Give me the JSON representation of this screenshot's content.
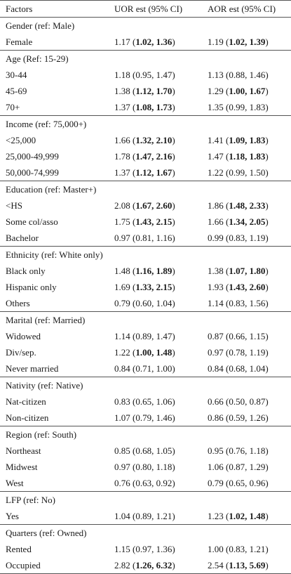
{
  "header": {
    "factors": "Factors",
    "uor": "UOR est (95% CI)",
    "aor": "AOR est (95% CI)"
  },
  "groups": [
    {
      "title": "Gender (ref: Male)",
      "rows": [
        {
          "label": "Female",
          "uor": {
            "est": "1.17",
            "ci": "1.02, 1.36",
            "bold": true
          },
          "aor": {
            "est": "1.19",
            "ci": "1.02, 1.39",
            "bold": true
          }
        }
      ]
    },
    {
      "title": "Age (Ref: 15-29)",
      "rows": [
        {
          "label": "30-44",
          "uor": {
            "est": "1.18",
            "ci": "0.95, 1.47",
            "bold": false
          },
          "aor": {
            "est": "1.13",
            "ci": "0.88, 1.46",
            "bold": false
          }
        },
        {
          "label": "45-69",
          "uor": {
            "est": "1.38",
            "ci": "1.12, 1.70",
            "bold": true
          },
          "aor": {
            "est": "1.29",
            "ci": "1.00, 1.67",
            "bold": true
          }
        },
        {
          "label": "70+",
          "uor": {
            "est": "1.37",
            "ci": "1.08, 1.73",
            "bold": true
          },
          "aor": {
            "est": "1.35",
            "ci": "0.99, 1.83",
            "bold": false
          }
        }
      ]
    },
    {
      "title": "Income (ref: 75,000+)",
      "rows": [
        {
          "label": "<25,000",
          "uor": {
            "est": "1.66",
            "ci": "1.32, 2.10",
            "bold": true
          },
          "aor": {
            "est": "1.41",
            "ci": "1.09, 1.83",
            "bold": true
          }
        },
        {
          "label": "25,000-49,999",
          "uor": {
            "est": "1.78",
            "ci": "1.47, 2.16",
            "bold": true
          },
          "aor": {
            "est": "1.47",
            "ci": "1.18, 1.83",
            "bold": true
          }
        },
        {
          "label": "50,000-74,999",
          "uor": {
            "est": "1.37",
            "ci": "1.12, 1.67",
            "bold": true
          },
          "aor": {
            "est": "1.22",
            "ci": "0.99, 1.50",
            "bold": false
          }
        }
      ]
    },
    {
      "title": "Education (ref: Master+)",
      "rows": [
        {
          "label": "<HS",
          "uor": {
            "est": "2.08",
            "ci": "1.67, 2.60",
            "bold": true
          },
          "aor": {
            "est": "1.86",
            "ci": "1.48, 2.33",
            "bold": true
          }
        },
        {
          "label": "Some col/asso",
          "uor": {
            "est": "1.75",
            "ci": "1.43, 2.15",
            "bold": true
          },
          "aor": {
            "est": "1.66",
            "ci": "1.34, 2.05",
            "bold": true
          }
        },
        {
          "label": "Bachelor",
          "uor": {
            "est": "0.97",
            "ci": "0.81, 1.16",
            "bold": false
          },
          "aor": {
            "est": "0.99",
            "ci": "0.83, 1.19",
            "bold": false
          }
        }
      ]
    },
    {
      "title": "Ethnicity (ref: White only)",
      "rows": [
        {
          "label": "Black only",
          "uor": {
            "est": "1.48",
            "ci": "1.16, 1.89",
            "bold": true
          },
          "aor": {
            "est": "1.38",
            "ci": "1.07, 1.80",
            "bold": true
          }
        },
        {
          "label": "Hispanic only",
          "uor": {
            "est": "1.69",
            "ci": "1.33, 2.15",
            "bold": true
          },
          "aor": {
            "est": "1.93",
            "ci": "1.43, 2.60",
            "bold": true
          }
        },
        {
          "label": "Others",
          "uor": {
            "est": "0.79",
            "ci": "0.60, 1.04",
            "bold": false
          },
          "aor": {
            "est": "1.14",
            "ci": "0.83, 1.56",
            "bold": false
          }
        }
      ]
    },
    {
      "title": "Marital (ref: Married)",
      "rows": [
        {
          "label": "Widowed",
          "uor": {
            "est": "1.14",
            "ci": "0.89, 1.47",
            "bold": false
          },
          "aor": {
            "est": "0.87",
            "ci": "0.66, 1.15",
            "bold": false
          }
        },
        {
          "label": "Div/sep.",
          "uor": {
            "est": "1.22",
            "ci": "1.00, 1.48",
            "bold": true
          },
          "aor": {
            "est": "0.97",
            "ci": "0.78, 1.19",
            "bold": false
          }
        },
        {
          "label": "Never married",
          "uor": {
            "est": "0.84",
            "ci": "0.71, 1.00",
            "bold": false
          },
          "aor": {
            "est": "0.84",
            "ci": "0.68, 1.04",
            "bold": false
          }
        }
      ]
    },
    {
      "title": "Nativity (ref: Native)",
      "rows": [
        {
          "label": "Nat-citizen",
          "uor": {
            "est": "0.83",
            "ci": "0.65, 1.06",
            "bold": false
          },
          "aor": {
            "est": "0.66",
            "ci": "0.50, 0.87",
            "bold": false
          }
        },
        {
          "label": "Non-citizen",
          "uor": {
            "est": "1.07",
            "ci": "0.79, 1.46",
            "bold": false
          },
          "aor": {
            "est": "0.86",
            "ci": "0.59, 1.26",
            "bold": false
          }
        }
      ]
    },
    {
      "title": "Region (ref: South)",
      "rows": [
        {
          "label": "Northeast",
          "uor": {
            "est": "0.85",
            "ci": "0.68, 1.05",
            "bold": false
          },
          "aor": {
            "est": "0.95",
            "ci": "0.76, 1.18",
            "bold": false
          }
        },
        {
          "label": "Midwest",
          "uor": {
            "est": "0.97",
            "ci": "0.80, 1.18",
            "bold": false
          },
          "aor": {
            "est": "1.06",
            "ci": "0.87, 1.29",
            "bold": false
          }
        },
        {
          "label": "West",
          "uor": {
            "est": "0.76",
            "ci": "0.63, 0.92",
            "bold": false
          },
          "aor": {
            "est": "0.79",
            "ci": "0.65, 0.96",
            "bold": false
          }
        }
      ]
    },
    {
      "title": "LFP (ref: No)",
      "rows": [
        {
          "label": "Yes",
          "uor": {
            "est": "1.04",
            "ci": "0.89, 1.21",
            "bold": false
          },
          "aor": {
            "est": "1.23",
            "ci": "1.02, 1.48",
            "bold": true
          }
        }
      ]
    },
    {
      "title": "Quarters (ref: Owned)",
      "rows": [
        {
          "label": "Rented",
          "uor": {
            "est": "1.15",
            "ci": "0.97, 1.36",
            "bold": false
          },
          "aor": {
            "est": "1.00",
            "ci": "0.83, 1.21",
            "bold": false
          }
        },
        {
          "label": "Occupied",
          "uor": {
            "est": "2.82",
            "ci": "1.26, 6.32",
            "bold": true
          },
          "aor": {
            "est": "2.54",
            "ci": "1.13, 5.69",
            "bold": true
          }
        }
      ]
    }
  ]
}
